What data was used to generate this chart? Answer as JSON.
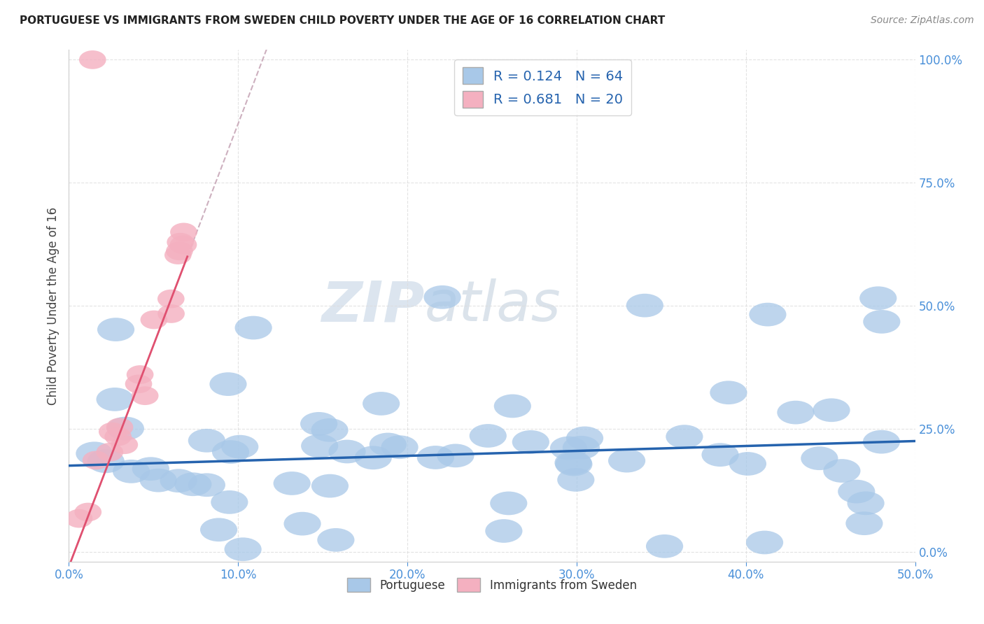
{
  "title": "PORTUGUESE VS IMMIGRANTS FROM SWEDEN CHILD POVERTY UNDER THE AGE OF 16 CORRELATION CHART",
  "source": "Source: ZipAtlas.com",
  "ylabel": "Child Poverty Under the Age of 16",
  "watermark_zip": "ZIP",
  "watermark_atlas": "atlas",
  "blue_label": "Portuguese",
  "pink_label": "Immigrants from Sweden",
  "blue_R": 0.124,
  "blue_N": 64,
  "pink_R": 0.681,
  "pink_N": 20,
  "blue_color": "#a8c8e8",
  "pink_color": "#f4b0c0",
  "blue_line_color": "#2563ae",
  "pink_line_color": "#e05070",
  "dash_color": "#c8a8b8",
  "xlim": [
    0.0,
    0.5
  ],
  "ylim": [
    -0.02,
    1.02
  ],
  "xticks": [
    0.0,
    0.1,
    0.2,
    0.3,
    0.4,
    0.5
  ],
  "yticks": [
    0.0,
    0.25,
    0.5,
    0.75,
    1.0
  ],
  "title_color": "#222222",
  "source_color": "#888888",
  "axis_label_color": "#444444",
  "tick_label_color": "#4a90d9",
  "grid_color": "#dddddd",
  "background_color": "#ffffff",
  "legend_text_color": "#2563ae"
}
